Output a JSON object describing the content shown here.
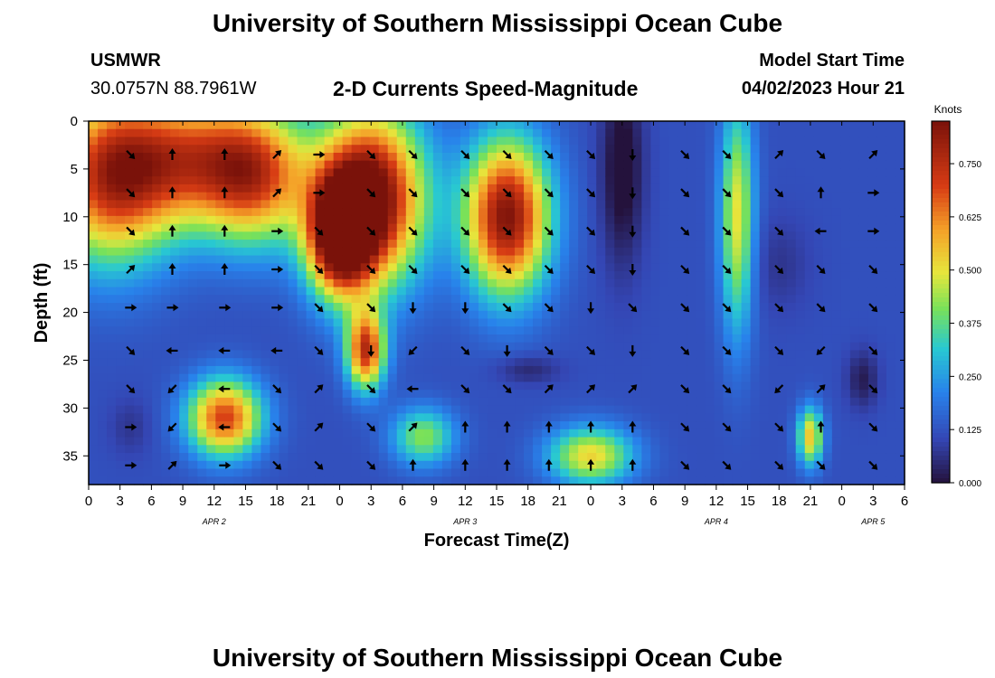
{
  "header": {
    "title": "University of Southern Mississippi Ocean Cube",
    "station": "USMWR",
    "location": "30.0757N  88.7961W",
    "plot_title": "2-D Currents Speed-Magnitude",
    "model_start_label": "Model Start Time",
    "model_start_value": "04/02/2023 Hour 21"
  },
  "footer": {
    "title": "University of Southern Mississippi Ocean Cube"
  },
  "chart_data": {
    "type": "heatmap",
    "title": "2-D Currents Speed-Magnitude",
    "xlabel": "Forecast Time(Z)",
    "ylabel": "Depth (ft)",
    "colorbar_label": "Knots",
    "x_ticks": [
      "0",
      "3",
      "6",
      "9",
      "12",
      "15",
      "18",
      "21",
      "0",
      "3",
      "6",
      "9",
      "12",
      "15",
      "18",
      "21",
      "0",
      "3",
      "6",
      "9",
      "12",
      "15",
      "18",
      "21",
      "0",
      "3",
      "6"
    ],
    "x_range_hours": [
      0,
      78
    ],
    "y_ticks": [
      "0",
      "5",
      "10",
      "15",
      "20",
      "25",
      "30",
      "35"
    ],
    "y_range_ft": [
      0,
      38
    ],
    "date_labels": [
      {
        "text": "APR 2",
        "hour": 12
      },
      {
        "text": "APR 3",
        "hour": 36
      },
      {
        "text": "APR 4",
        "hour": 60
      },
      {
        "text": "APR 5",
        "hour": 75
      }
    ],
    "colorbar_ticks": [
      "0.000",
      "0.125",
      "0.250",
      "0.375",
      "0.500",
      "0.625",
      "0.750"
    ],
    "colorbar_range": [
      0,
      0.85
    ],
    "speed_blobs": [
      {
        "hour": 2,
        "depth": 6,
        "knots": 0.55,
        "sh": 6,
        "sd": 9
      },
      {
        "hour": 10,
        "depth": 4,
        "knots": 0.48,
        "sh": 8,
        "sd": 7
      },
      {
        "hour": 16,
        "depth": 6,
        "knots": 0.42,
        "sh": 5,
        "sd": 7
      },
      {
        "hour": 27,
        "depth": 8,
        "knots": 0.78,
        "sh": 5,
        "sd": 9
      },
      {
        "hour": 24,
        "depth": 12,
        "knots": 0.7,
        "sh": 3,
        "sd": 6
      },
      {
        "hour": 26.5,
        "depth": 24,
        "knots": 0.6,
        "sh": 1.8,
        "sd": 4
      },
      {
        "hour": 40,
        "depth": 10,
        "knots": 0.72,
        "sh": 4,
        "sd": 8
      },
      {
        "hour": 13,
        "depth": 31,
        "knots": 0.58,
        "sh": 3.5,
        "sd": 4
      },
      {
        "hour": 48,
        "depth": 35,
        "knots": 0.4,
        "sh": 4,
        "sd": 3
      },
      {
        "hour": 32,
        "depth": 33,
        "knots": 0.3,
        "sh": 3,
        "sd": 3
      },
      {
        "hour": 62,
        "depth": 10,
        "knots": 0.38,
        "sh": 1.6,
        "sd": 12
      },
      {
        "hour": 69,
        "depth": 33,
        "knots": 0.42,
        "sh": 1.2,
        "sd": 3
      },
      {
        "hour": 51,
        "depth": 5,
        "knots": -0.15,
        "sh": 2,
        "sd": 10
      },
      {
        "hour": 74,
        "depth": 27,
        "knots": -0.1,
        "sh": 1.5,
        "sd": 3
      },
      {
        "hour": 42,
        "depth": 26,
        "knots": -0.08,
        "sh": 3,
        "sd": 1.5
      },
      {
        "hour": 66,
        "depth": 15,
        "knots": -0.05,
        "sh": 3,
        "sd": 5
      },
      {
        "hour": 4,
        "depth": 32,
        "knots": -0.05,
        "sh": 2,
        "sd": 3
      }
    ],
    "speed_base_knots": 0.12,
    "vectors": [
      {
        "hour": 4,
        "depth": 3.5,
        "dir": "SE"
      },
      {
        "hour": 8,
        "depth": 3.5,
        "dir": "N"
      },
      {
        "hour": 13,
        "depth": 3.5,
        "dir": "N"
      },
      {
        "hour": 18,
        "depth": 3.5,
        "dir": "NE"
      },
      {
        "hour": 22,
        "depth": 3.5,
        "dir": "E"
      },
      {
        "hour": 27,
        "depth": 3.5,
        "dir": "SE"
      },
      {
        "hour": 31,
        "depth": 3.5,
        "dir": "SE"
      },
      {
        "hour": 36,
        "depth": 3.5,
        "dir": "SE"
      },
      {
        "hour": 40,
        "depth": 3.5,
        "dir": "SE"
      },
      {
        "hour": 44,
        "depth": 3.5,
        "dir": "SE"
      },
      {
        "hour": 48,
        "depth": 3.5,
        "dir": "SE"
      },
      {
        "hour": 52,
        "depth": 3.5,
        "dir": "S"
      },
      {
        "hour": 57,
        "depth": 3.5,
        "dir": "SE"
      },
      {
        "hour": 61,
        "depth": 3.5,
        "dir": "SE"
      },
      {
        "hour": 66,
        "depth": 3.5,
        "dir": "NE"
      },
      {
        "hour": 70,
        "depth": 3.5,
        "dir": "SE"
      },
      {
        "hour": 75,
        "depth": 3.5,
        "dir": "NE"
      },
      {
        "hour": 4,
        "depth": 7.5,
        "dir": "SE"
      },
      {
        "hour": 8,
        "depth": 7.5,
        "dir": "N"
      },
      {
        "hour": 13,
        "depth": 7.5,
        "dir": "N"
      },
      {
        "hour": 18,
        "depth": 7.5,
        "dir": "NE"
      },
      {
        "hour": 22,
        "depth": 7.5,
        "dir": "E"
      },
      {
        "hour": 27,
        "depth": 7.5,
        "dir": "SE"
      },
      {
        "hour": 31,
        "depth": 7.5,
        "dir": "SE"
      },
      {
        "hour": 36,
        "depth": 7.5,
        "dir": "SE"
      },
      {
        "hour": 40,
        "depth": 7.5,
        "dir": "SE"
      },
      {
        "hour": 44,
        "depth": 7.5,
        "dir": "SE"
      },
      {
        "hour": 48,
        "depth": 7.5,
        "dir": "SE"
      },
      {
        "hour": 52,
        "depth": 7.5,
        "dir": "S"
      },
      {
        "hour": 57,
        "depth": 7.5,
        "dir": "SE"
      },
      {
        "hour": 61,
        "depth": 7.5,
        "dir": "SE"
      },
      {
        "hour": 66,
        "depth": 7.5,
        "dir": "SE"
      },
      {
        "hour": 70,
        "depth": 7.5,
        "dir": "N"
      },
      {
        "hour": 75,
        "depth": 7.5,
        "dir": "E"
      },
      {
        "hour": 4,
        "depth": 11.5,
        "dir": "SE"
      },
      {
        "hour": 8,
        "depth": 11.5,
        "dir": "N"
      },
      {
        "hour": 13,
        "depth": 11.5,
        "dir": "N"
      },
      {
        "hour": 18,
        "depth": 11.5,
        "dir": "E"
      },
      {
        "hour": 22,
        "depth": 11.5,
        "dir": "SE"
      },
      {
        "hour": 27,
        "depth": 11.5,
        "dir": "SE"
      },
      {
        "hour": 31,
        "depth": 11.5,
        "dir": "SE"
      },
      {
        "hour": 36,
        "depth": 11.5,
        "dir": "SE"
      },
      {
        "hour": 40,
        "depth": 11.5,
        "dir": "SE"
      },
      {
        "hour": 44,
        "depth": 11.5,
        "dir": "SE"
      },
      {
        "hour": 48,
        "depth": 11.5,
        "dir": "SE"
      },
      {
        "hour": 52,
        "depth": 11.5,
        "dir": "S"
      },
      {
        "hour": 57,
        "depth": 11.5,
        "dir": "SE"
      },
      {
        "hour": 61,
        "depth": 11.5,
        "dir": "SE"
      },
      {
        "hour": 66,
        "depth": 11.5,
        "dir": "SE"
      },
      {
        "hour": 70,
        "depth": 11.5,
        "dir": "W"
      },
      {
        "hour": 75,
        "depth": 11.5,
        "dir": "E"
      },
      {
        "hour": 4,
        "depth": 15.5,
        "dir": "NE"
      },
      {
        "hour": 8,
        "depth": 15.5,
        "dir": "N"
      },
      {
        "hour": 13,
        "depth": 15.5,
        "dir": "N"
      },
      {
        "hour": 18,
        "depth": 15.5,
        "dir": "E"
      },
      {
        "hour": 22,
        "depth": 15.5,
        "dir": "SE"
      },
      {
        "hour": 27,
        "depth": 15.5,
        "dir": "SE"
      },
      {
        "hour": 31,
        "depth": 15.5,
        "dir": "SE"
      },
      {
        "hour": 36,
        "depth": 15.5,
        "dir": "SE"
      },
      {
        "hour": 40,
        "depth": 15.5,
        "dir": "SE"
      },
      {
        "hour": 44,
        "depth": 15.5,
        "dir": "SE"
      },
      {
        "hour": 48,
        "depth": 15.5,
        "dir": "SE"
      },
      {
        "hour": 52,
        "depth": 15.5,
        "dir": "S"
      },
      {
        "hour": 57,
        "depth": 15.5,
        "dir": "SE"
      },
      {
        "hour": 61,
        "depth": 15.5,
        "dir": "SE"
      },
      {
        "hour": 66,
        "depth": 15.5,
        "dir": "SE"
      },
      {
        "hour": 70,
        "depth": 15.5,
        "dir": "SE"
      },
      {
        "hour": 75,
        "depth": 15.5,
        "dir": "SE"
      },
      {
        "hour": 4,
        "depth": 19.5,
        "dir": "E"
      },
      {
        "hour": 8,
        "depth": 19.5,
        "dir": "E"
      },
      {
        "hour": 13,
        "depth": 19.5,
        "dir": "E"
      },
      {
        "hour": 18,
        "depth": 19.5,
        "dir": "E"
      },
      {
        "hour": 22,
        "depth": 19.5,
        "dir": "SE"
      },
      {
        "hour": 27,
        "depth": 19.5,
        "dir": "SE"
      },
      {
        "hour": 31,
        "depth": 19.5,
        "dir": "S"
      },
      {
        "hour": 36,
        "depth": 19.5,
        "dir": "S"
      },
      {
        "hour": 40,
        "depth": 19.5,
        "dir": "SE"
      },
      {
        "hour": 44,
        "depth": 19.5,
        "dir": "SE"
      },
      {
        "hour": 48,
        "depth": 19.5,
        "dir": "S"
      },
      {
        "hour": 52,
        "depth": 19.5,
        "dir": "SE"
      },
      {
        "hour": 57,
        "depth": 19.5,
        "dir": "SE"
      },
      {
        "hour": 61,
        "depth": 19.5,
        "dir": "SE"
      },
      {
        "hour": 66,
        "depth": 19.5,
        "dir": "SE"
      },
      {
        "hour": 70,
        "depth": 19.5,
        "dir": "SE"
      },
      {
        "hour": 75,
        "depth": 19.5,
        "dir": "SE"
      },
      {
        "hour": 4,
        "depth": 24,
        "dir": "SE"
      },
      {
        "hour": 8,
        "depth": 24,
        "dir": "W"
      },
      {
        "hour": 13,
        "depth": 24,
        "dir": "W"
      },
      {
        "hour": 18,
        "depth": 24,
        "dir": "W"
      },
      {
        "hour": 22,
        "depth": 24,
        "dir": "SE"
      },
      {
        "hour": 27,
        "depth": 24,
        "dir": "S"
      },
      {
        "hour": 31,
        "depth": 24,
        "dir": "SW"
      },
      {
        "hour": 36,
        "depth": 24,
        "dir": "SE"
      },
      {
        "hour": 40,
        "depth": 24,
        "dir": "S"
      },
      {
        "hour": 44,
        "depth": 24,
        "dir": "SE"
      },
      {
        "hour": 48,
        "depth": 24,
        "dir": "SE"
      },
      {
        "hour": 52,
        "depth": 24,
        "dir": "S"
      },
      {
        "hour": 57,
        "depth": 24,
        "dir": "SE"
      },
      {
        "hour": 61,
        "depth": 24,
        "dir": "SE"
      },
      {
        "hour": 66,
        "depth": 24,
        "dir": "SE"
      },
      {
        "hour": 70,
        "depth": 24,
        "dir": "SW"
      },
      {
        "hour": 75,
        "depth": 24,
        "dir": "SE"
      },
      {
        "hour": 4,
        "depth": 28,
        "dir": "SE"
      },
      {
        "hour": 8,
        "depth": 28,
        "dir": "SW"
      },
      {
        "hour": 13,
        "depth": 28,
        "dir": "W"
      },
      {
        "hour": 18,
        "depth": 28,
        "dir": "SE"
      },
      {
        "hour": 22,
        "depth": 28,
        "dir": "NE"
      },
      {
        "hour": 27,
        "depth": 28,
        "dir": "SE"
      },
      {
        "hour": 31,
        "depth": 28,
        "dir": "W"
      },
      {
        "hour": 36,
        "depth": 28,
        "dir": "SE"
      },
      {
        "hour": 40,
        "depth": 28,
        "dir": "SE"
      },
      {
        "hour": 44,
        "depth": 28,
        "dir": "NE"
      },
      {
        "hour": 48,
        "depth": 28,
        "dir": "NE"
      },
      {
        "hour": 52,
        "depth": 28,
        "dir": "NE"
      },
      {
        "hour": 57,
        "depth": 28,
        "dir": "SE"
      },
      {
        "hour": 61,
        "depth": 28,
        "dir": "SE"
      },
      {
        "hour": 66,
        "depth": 28,
        "dir": "SW"
      },
      {
        "hour": 70,
        "depth": 28,
        "dir": "NE"
      },
      {
        "hour": 75,
        "depth": 28,
        "dir": "SE"
      },
      {
        "hour": 4,
        "depth": 32,
        "dir": "E"
      },
      {
        "hour": 8,
        "depth": 32,
        "dir": "SW"
      },
      {
        "hour": 13,
        "depth": 32,
        "dir": "W"
      },
      {
        "hour": 18,
        "depth": 32,
        "dir": "SE"
      },
      {
        "hour": 22,
        "depth": 32,
        "dir": "NE"
      },
      {
        "hour": 27,
        "depth": 32,
        "dir": "SE"
      },
      {
        "hour": 31,
        "depth": 32,
        "dir": "NE"
      },
      {
        "hour": 36,
        "depth": 32,
        "dir": "N"
      },
      {
        "hour": 40,
        "depth": 32,
        "dir": "N"
      },
      {
        "hour": 44,
        "depth": 32,
        "dir": "N"
      },
      {
        "hour": 48,
        "depth": 32,
        "dir": "N"
      },
      {
        "hour": 52,
        "depth": 32,
        "dir": "N"
      },
      {
        "hour": 57,
        "depth": 32,
        "dir": "SE"
      },
      {
        "hour": 61,
        "depth": 32,
        "dir": "SE"
      },
      {
        "hour": 66,
        "depth": 32,
        "dir": "SE"
      },
      {
        "hour": 70,
        "depth": 32,
        "dir": "N"
      },
      {
        "hour": 75,
        "depth": 32,
        "dir": "SE"
      },
      {
        "hour": 4,
        "depth": 36,
        "dir": "E"
      },
      {
        "hour": 8,
        "depth": 36,
        "dir": "NE"
      },
      {
        "hour": 13,
        "depth": 36,
        "dir": "E"
      },
      {
        "hour": 18,
        "depth": 36,
        "dir": "SE"
      },
      {
        "hour": 22,
        "depth": 36,
        "dir": "SE"
      },
      {
        "hour": 27,
        "depth": 36,
        "dir": "SE"
      },
      {
        "hour": 31,
        "depth": 36,
        "dir": "N"
      },
      {
        "hour": 36,
        "depth": 36,
        "dir": "N"
      },
      {
        "hour": 40,
        "depth": 36,
        "dir": "N"
      },
      {
        "hour": 44,
        "depth": 36,
        "dir": "N"
      },
      {
        "hour": 48,
        "depth": 36,
        "dir": "N"
      },
      {
        "hour": 52,
        "depth": 36,
        "dir": "N"
      },
      {
        "hour": 57,
        "depth": 36,
        "dir": "SE"
      },
      {
        "hour": 61,
        "depth": 36,
        "dir": "SE"
      },
      {
        "hour": 66,
        "depth": 36,
        "dir": "SE"
      },
      {
        "hour": 70,
        "depth": 36,
        "dir": "SE"
      },
      {
        "hour": 75,
        "depth": 36,
        "dir": "SE"
      }
    ]
  }
}
